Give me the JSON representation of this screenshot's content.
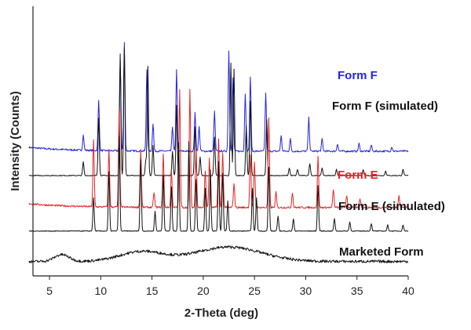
{
  "chart_data": {
    "type": "line",
    "xlabel": "2-Theta (deg)",
    "ylabel": "Intensity (Counts)",
    "xlim": [
      3,
      40
    ],
    "xticks": [
      5,
      10,
      15,
      20,
      25,
      30,
      35,
      40
    ],
    "series": [
      {
        "name": "Form F",
        "color": "#2323e6",
        "baseline": 8.2,
        "peaks": [
          [
            8.3,
            1.0
          ],
          [
            9.8,
            3.3
          ],
          [
            11.9,
            6.0
          ],
          [
            12.3,
            7.1
          ],
          [
            14.5,
            5.4
          ],
          [
            15.1,
            1.8
          ],
          [
            17.0,
            1.6
          ],
          [
            17.4,
            5.4
          ],
          [
            19.2,
            2.5
          ],
          [
            19.6,
            1.6
          ],
          [
            21.1,
            2.6
          ],
          [
            22.5,
            6.6
          ],
          [
            22.9,
            4.8
          ],
          [
            24.1,
            3.8
          ],
          [
            24.6,
            4.9
          ],
          [
            26.1,
            3.8
          ],
          [
            27.6,
            1.0
          ],
          [
            28.5,
            0.8
          ],
          [
            30.3,
            2.2
          ],
          [
            31.6,
            0.8
          ],
          [
            33.1,
            0.5
          ],
          [
            35.2,
            0.5
          ],
          [
            36.4,
            0.4
          ],
          [
            38.4,
            0.3
          ]
        ]
      },
      {
        "name": "Form F (simulated)",
        "color": "#111111",
        "baseline": 6.6,
        "peaks": [
          [
            8.3,
            0.9
          ],
          [
            9.8,
            3.8
          ],
          [
            11.9,
            8.0
          ],
          [
            12.3,
            8.4
          ],
          [
            14.4,
            1.0
          ],
          [
            14.6,
            7.2
          ],
          [
            15.1,
            2.0
          ],
          [
            17.0,
            1.6
          ],
          [
            17.4,
            4.6
          ],
          [
            19.2,
            3.2
          ],
          [
            19.7,
            1.2
          ],
          [
            21.1,
            2.5
          ],
          [
            22.7,
            7.4
          ],
          [
            23.0,
            7.0
          ],
          [
            24.2,
            3.3
          ],
          [
            24.6,
            4.9
          ],
          [
            26.2,
            3.7
          ],
          [
            28.4,
            0.5
          ],
          [
            29.2,
            0.4
          ],
          [
            30.4,
            0.8
          ],
          [
            31.6,
            0.5
          ],
          [
            33.0,
            0.4
          ],
          [
            35.6,
            0.4
          ],
          [
            37.8,
            0.3
          ],
          [
            39.5,
            0.4
          ]
        ]
      },
      {
        "name": "Form E",
        "color": "#e62323",
        "baseline": 4.5,
        "peaks": [
          [
            9.3,
            4.4
          ],
          [
            10.8,
            3.8
          ],
          [
            11.8,
            6.4
          ],
          [
            13.9,
            3.8
          ],
          [
            15.2,
            1.0
          ],
          [
            16.1,
            3.5
          ],
          [
            16.9,
            2.4
          ],
          [
            17.7,
            7.8
          ],
          [
            18.7,
            7.8
          ],
          [
            19.3,
            4.0
          ],
          [
            20.2,
            2.4
          ],
          [
            20.6,
            3.2
          ],
          [
            21.5,
            4.5
          ],
          [
            21.9,
            3.6
          ],
          [
            23.0,
            1.6
          ],
          [
            24.6,
            3.5
          ],
          [
            25.0,
            3.0
          ],
          [
            26.4,
            5.9
          ],
          [
            27.1,
            1.0
          ],
          [
            28.7,
            1.0
          ],
          [
            31.2,
            3.4
          ],
          [
            32.7,
            1.2
          ],
          [
            34.0,
            0.8
          ],
          [
            35.3,
            0.6
          ],
          [
            39.1,
            0.8
          ]
        ]
      },
      {
        "name": "Form E (simulated)",
        "color": "#111111",
        "baseline": 2.95,
        "peaks": [
          [
            9.3,
            2.2
          ],
          [
            10.8,
            3.9
          ],
          [
            11.8,
            6.2
          ],
          [
            13.9,
            4.7
          ],
          [
            15.3,
            1.3
          ],
          [
            16.1,
            3.7
          ],
          [
            16.9,
            2.9
          ],
          [
            17.6,
            5.8
          ],
          [
            18.6,
            5.9
          ],
          [
            19.3,
            3.4
          ],
          [
            20.2,
            2.8
          ],
          [
            20.7,
            4.0
          ],
          [
            21.5,
            4.6
          ],
          [
            21.9,
            3.8
          ],
          [
            22.4,
            2.0
          ],
          [
            24.8,
            2.8
          ],
          [
            25.2,
            2.2
          ],
          [
            26.4,
            4.2
          ],
          [
            27.3,
            1.0
          ],
          [
            28.8,
            0.8
          ],
          [
            31.2,
            3.0
          ],
          [
            32.8,
            0.8
          ],
          [
            34.3,
            0.6
          ],
          [
            36.4,
            0.5
          ],
          [
            38.0,
            0.4
          ],
          [
            39.5,
            0.4
          ]
        ]
      },
      {
        "name": "Marketed Form",
        "color": "#111111",
        "baseline": 0.95,
        "amorphous": true,
        "humps": [
          [
            6.2,
            0.45,
            1.0
          ],
          [
            14.0,
            0.65,
            3.0
          ],
          [
            22.5,
            0.95,
            4.5
          ]
        ]
      }
    ]
  }
}
